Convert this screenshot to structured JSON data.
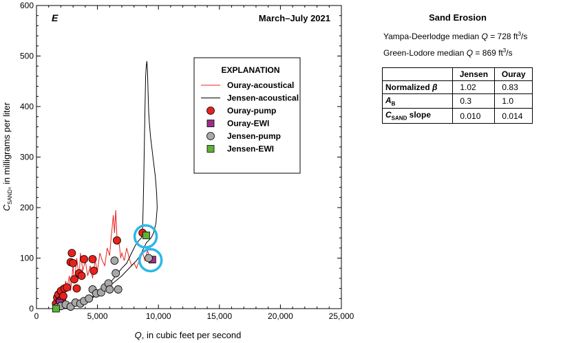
{
  "chart_data": {
    "type": "scatter",
    "panel_letter": "E",
    "date_range": "March–July 2021",
    "xlabel_var": "Q",
    "xlabel_rest": ", in cubic feet per second",
    "ylabel_var": "C",
    "ylabel_sub": "SAND",
    "ylabel_rest": ", in milligrams per liter",
    "xlim": [
      0,
      25000
    ],
    "ylim": [
      0,
      600
    ],
    "x_ticks": [
      0,
      5000,
      10000,
      15000,
      20000,
      25000
    ],
    "x_tick_labels": [
      "0",
      "5,000",
      "10,000",
      "15,000",
      "20,000",
      "25,000"
    ],
    "y_ticks": [
      0,
      100,
      200,
      300,
      400,
      500,
      600
    ],
    "y_tick_labels": [
      "0",
      "100",
      "200",
      "300",
      "400",
      "500",
      "600"
    ],
    "legend_title": "EXPLANATION",
    "series": [
      {
        "name": "Ouray-acoustical",
        "kind": "line",
        "color": "#e8211d",
        "points": [
          [
            1500,
            10
          ],
          [
            1700,
            30
          ],
          [
            1900,
            20
          ],
          [
            2000,
            45
          ],
          [
            2200,
            25
          ],
          [
            2400,
            55
          ],
          [
            2500,
            40
          ],
          [
            2700,
            65
          ],
          [
            2800,
            35
          ],
          [
            3000,
            85
          ],
          [
            3100,
            50
          ],
          [
            3300,
            100
          ],
          [
            3500,
            60
          ],
          [
            3600,
            110
          ],
          [
            3800,
            75
          ],
          [
            4000,
            95
          ],
          [
            4200,
            65
          ],
          [
            4400,
            85
          ],
          [
            4600,
            60
          ],
          [
            4800,
            95
          ],
          [
            5000,
            75
          ],
          [
            5200,
            110
          ],
          [
            5400,
            95
          ],
          [
            5600,
            85
          ],
          [
            5800,
            120
          ],
          [
            6000,
            105
          ],
          [
            6100,
            135
          ],
          [
            6200,
            160
          ],
          [
            6300,
            185
          ],
          [
            6400,
            150
          ],
          [
            6500,
            195
          ],
          [
            6600,
            140
          ],
          [
            6800,
            125
          ],
          [
            6900,
            100
          ],
          [
            7000,
            110
          ],
          [
            7200,
            95
          ],
          [
            7400,
            120
          ],
          [
            7600,
            100
          ],
          [
            7800,
            85
          ],
          [
            8000,
            90
          ],
          [
            8200,
            80
          ],
          [
            8500,
            100
          ],
          [
            8700,
            110
          ],
          [
            8900,
            95
          ],
          [
            9100,
            115
          ],
          [
            9300,
            100
          ],
          [
            9500,
            90
          ]
        ]
      },
      {
        "name": "Jensen-acoustical",
        "kind": "line",
        "color": "#000000",
        "points": [
          [
            1600,
            3
          ],
          [
            2000,
            5
          ],
          [
            2500,
            8
          ],
          [
            3000,
            12
          ],
          [
            3500,
            10
          ],
          [
            4000,
            18
          ],
          [
            4500,
            22
          ],
          [
            5000,
            30
          ],
          [
            5500,
            42
          ],
          [
            6000,
            50
          ],
          [
            6500,
            65
          ],
          [
            7000,
            80
          ],
          [
            7400,
            90
          ],
          [
            7800,
            110
          ],
          [
            8100,
            125
          ],
          [
            8400,
            135
          ],
          [
            8600,
            140
          ],
          [
            8700,
            160
          ],
          [
            8750,
            200
          ],
          [
            8800,
            260
          ],
          [
            8850,
            330
          ],
          [
            8900,
            400
          ],
          [
            8950,
            460
          ],
          [
            9000,
            480
          ],
          [
            9050,
            490
          ],
          [
            9100,
            470
          ],
          [
            9150,
            430
          ],
          [
            9200,
            390
          ],
          [
            9250,
            370
          ],
          [
            9300,
            355
          ],
          [
            9350,
            340
          ],
          [
            9450,
            320
          ],
          [
            9550,
            300
          ],
          [
            9650,
            280
          ],
          [
            9750,
            260
          ],
          [
            9850,
            230
          ],
          [
            9900,
            200
          ],
          [
            9800,
            170
          ],
          [
            9600,
            150
          ],
          [
            9400,
            140
          ],
          [
            9200,
            135
          ],
          [
            9000,
            130
          ],
          [
            8800,
            120
          ],
          [
            8500,
            105
          ],
          [
            8200,
            95
          ],
          [
            7800,
            85
          ],
          [
            7400,
            75
          ],
          [
            7000,
            65
          ],
          [
            6500,
            55
          ],
          [
            6000,
            45
          ],
          [
            5500,
            35
          ],
          [
            5000,
            28
          ],
          [
            4500,
            20
          ],
          [
            4000,
            14
          ],
          [
            3500,
            10
          ],
          [
            3000,
            6
          ],
          [
            2500,
            4
          ],
          [
            2000,
            3
          ]
        ]
      },
      {
        "name": "Ouray-pump",
        "kind": "circle",
        "color": "#e8211d",
        "points": [
          [
            1600,
            10
          ],
          [
            1700,
            22
          ],
          [
            1800,
            28
          ],
          [
            1900,
            15
          ],
          [
            2000,
            35
          ],
          [
            2100,
            20
          ],
          [
            2200,
            25
          ],
          [
            2300,
            40
          ],
          [
            2500,
            42
          ],
          [
            2800,
            92
          ],
          [
            2900,
            110
          ],
          [
            3000,
            90
          ],
          [
            3100,
            58
          ],
          [
            3300,
            40
          ],
          [
            3500,
            70
          ],
          [
            3700,
            65
          ],
          [
            3900,
            98
          ],
          [
            4600,
            98
          ],
          [
            4700,
            75
          ],
          [
            6600,
            135
          ],
          [
            8700,
            150
          ]
        ]
      },
      {
        "name": "Ouray-EWI",
        "kind": "square",
        "color": "#9b2f8b",
        "points": [
          [
            1900,
            12
          ],
          [
            9500,
            97
          ]
        ]
      },
      {
        "name": "Jensen-pump",
        "kind": "circle",
        "color": "#a8a8a8",
        "points": [
          [
            1700,
            3
          ],
          [
            2000,
            5
          ],
          [
            2400,
            8
          ],
          [
            2800,
            4
          ],
          [
            3200,
            12
          ],
          [
            3600,
            10
          ],
          [
            3900,
            15
          ],
          [
            4300,
            20
          ],
          [
            4600,
            38
          ],
          [
            4900,
            30
          ],
          [
            5300,
            32
          ],
          [
            5600,
            42
          ],
          [
            5900,
            50
          ],
          [
            6000,
            38
          ],
          [
            6400,
            95
          ],
          [
            6500,
            70
          ],
          [
            6700,
            38
          ],
          [
            9200,
            100
          ]
        ]
      },
      {
        "name": "Jensen-EWI",
        "kind": "square",
        "color": "#5cb335",
        "points": [
          [
            1600,
            0
          ],
          [
            9000,
            145
          ]
        ]
      }
    ],
    "highlight_circles": [
      {
        "x": 8950,
        "y": 143,
        "color": "#2db7e8"
      },
      {
        "x": 9350,
        "y": 96,
        "color": "#2db7e8"
      }
    ]
  },
  "side_panel": {
    "title": "Sand Erosion",
    "medians": [
      {
        "prefix": "Yampa-Deerlodge median ",
        "var": "Q",
        "value": " = 728 ft",
        "sup": "3",
        "unit": "/s"
      },
      {
        "prefix": "Green-Lodore median ",
        "var": "Q",
        "value": " = 869 ft",
        "sup": "3",
        "unit": "/s"
      }
    ],
    "table": {
      "columns": [
        "",
        "Jensen",
        "Ouray"
      ],
      "rows": [
        {
          "label": "Normalized ",
          "label_var": "β",
          "label_sub": "",
          "label_suffix": "",
          "values": [
            "1.02",
            "0.83"
          ]
        },
        {
          "label": "",
          "label_var": "A",
          "label_sub": "B",
          "label_suffix": "",
          "values": [
            "0.3",
            "1.0"
          ]
        },
        {
          "label": "",
          "label_var": "C",
          "label_sub": "SAND",
          "label_suffix": " slope",
          "values": [
            "0.010",
            "0.014"
          ]
        }
      ]
    }
  }
}
